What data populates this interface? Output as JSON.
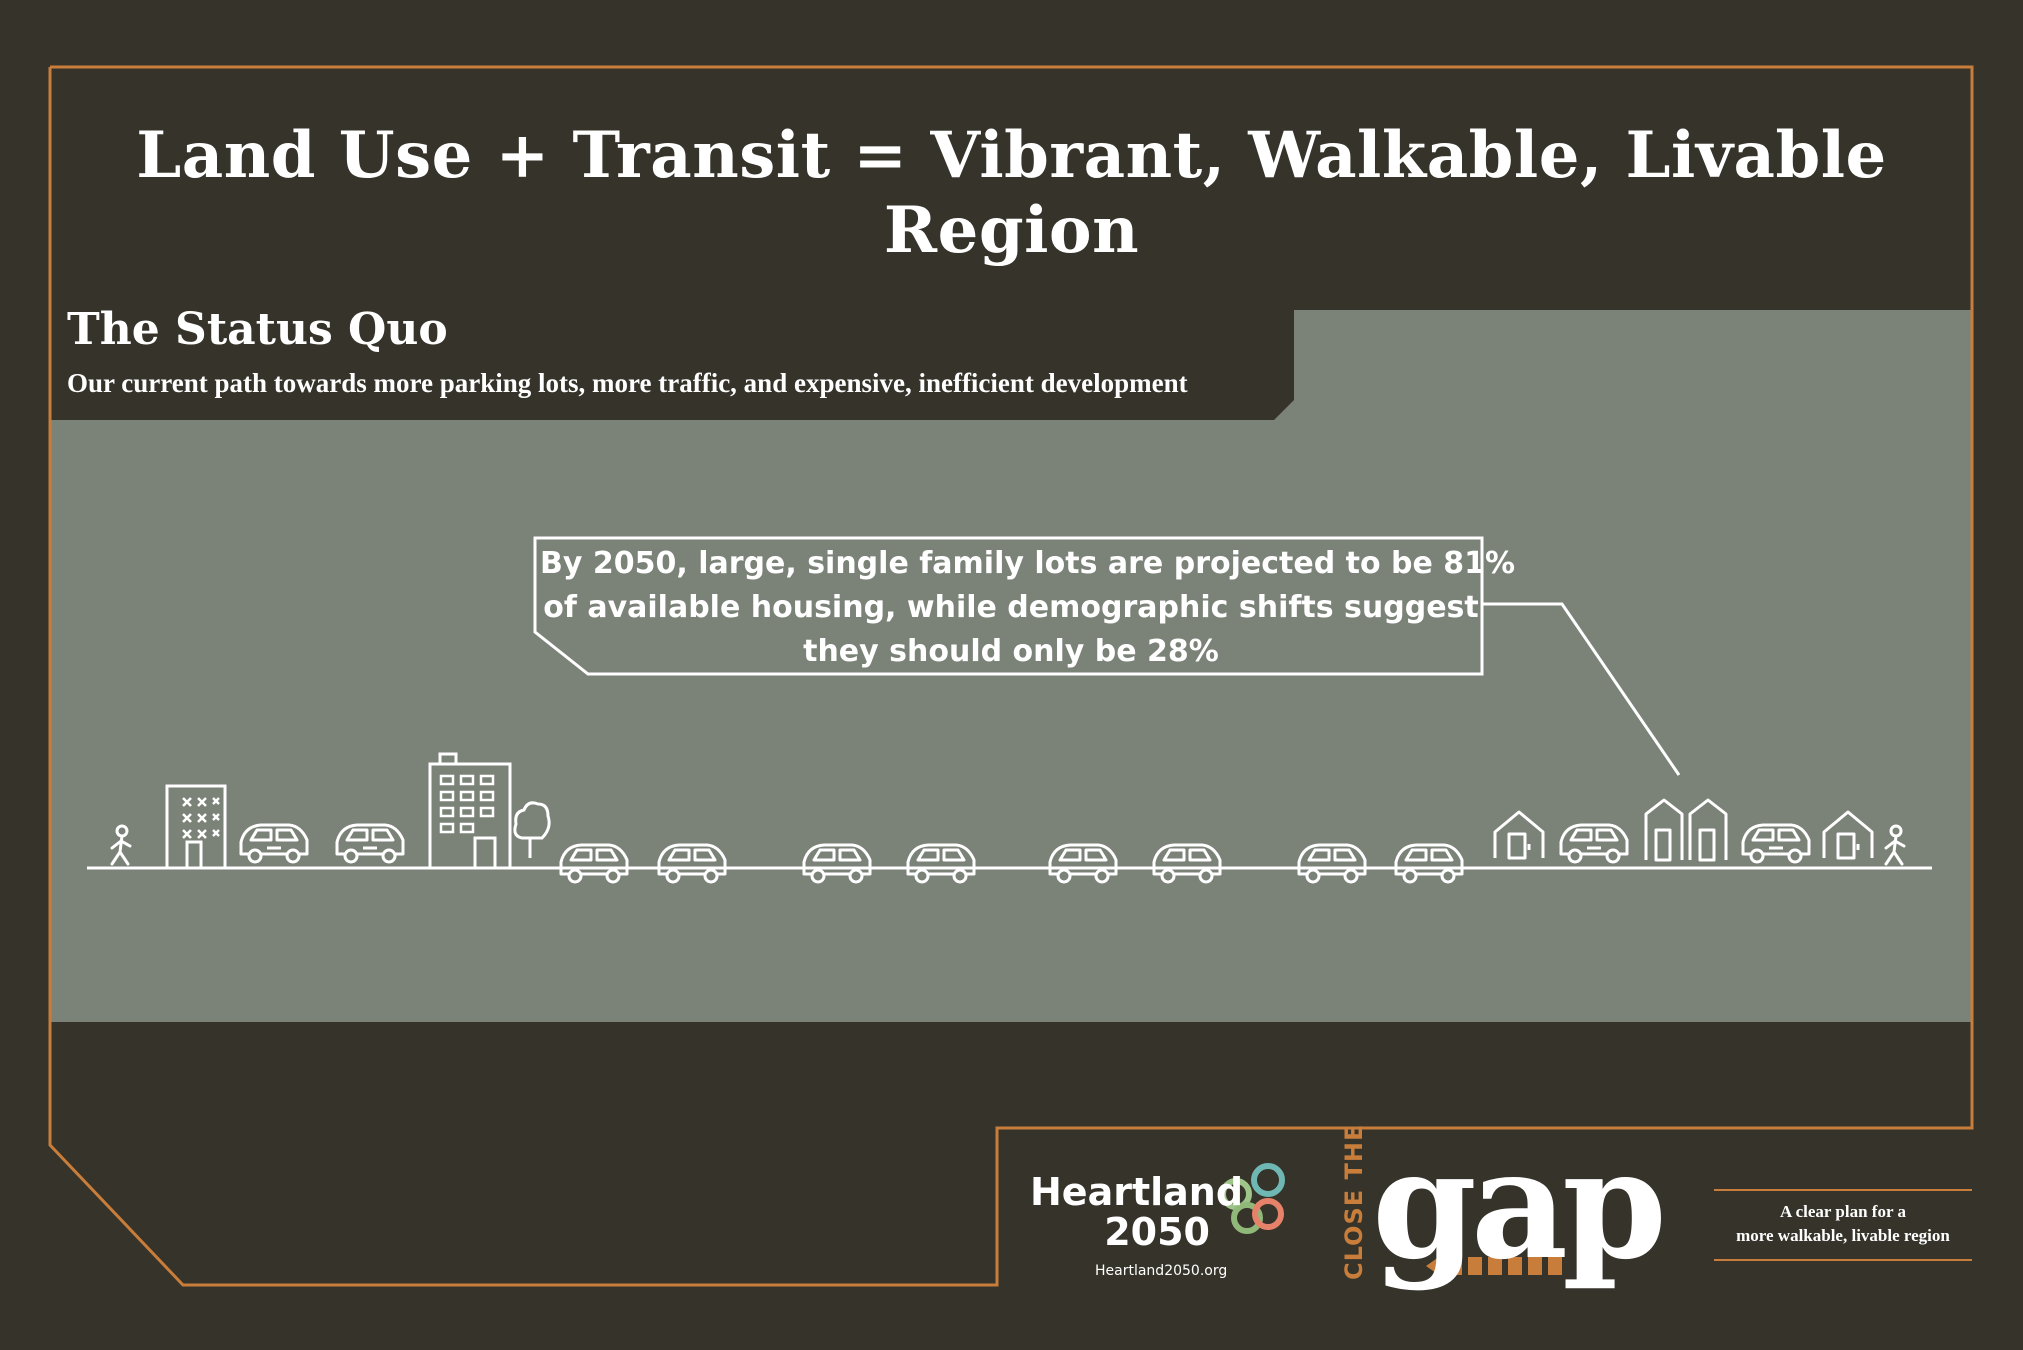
{
  "header": {
    "title": "Land Use + Transit = Vibrant, Walkable, Livable Region"
  },
  "section": {
    "title": "The Status Quo",
    "subtitle": "Our current path towards more parking lots, more traffic, and expensive, inefficient development"
  },
  "callout": {
    "lines": [
      "By 2050, large, single family lots are projected to be 81%",
      "of available housing, while demographic shifts suggest",
      "they should only be 28%"
    ]
  },
  "scene": {
    "icons": [
      "walking-person-icon",
      "office-building-icon",
      "car-icon",
      "apartment-building-icon",
      "tree-icon",
      "house-icon"
    ]
  },
  "footer": {
    "heartland_line1": "Heartland",
    "heartland_line2": "2050",
    "url": "Heartland2050.org",
    "close_the": "CLOSE THE",
    "gap": "gap",
    "tagline_line1": "A clear plan for a",
    "tagline_line2": "more walkable, livable region"
  },
  "colors": {
    "background": "#35332a",
    "panel": "#7b8278",
    "accent": "#c87d3a",
    "text": "#ffffff"
  }
}
